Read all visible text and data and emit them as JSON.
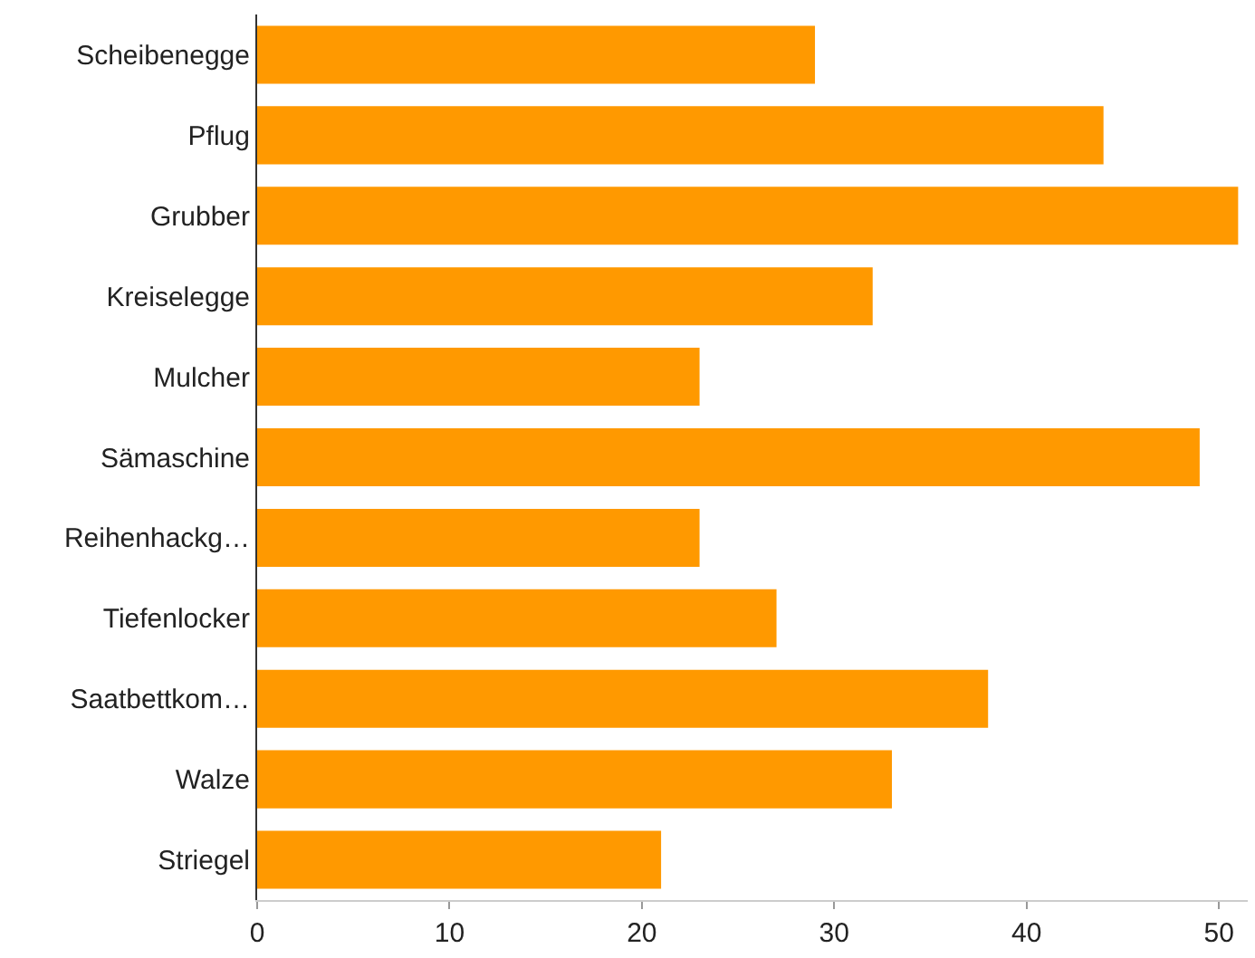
{
  "chart_data": {
    "type": "bar",
    "orientation": "horizontal",
    "categories": [
      "Scheibenegge",
      "Pflug",
      "Grubber",
      "Kreiselegge",
      "Mulcher",
      "Sämaschine",
      "Reihenhackg…",
      "Tiefenlocker",
      "Saatbettkom…",
      "Walze",
      "Striegel"
    ],
    "values": [
      29,
      44,
      51,
      32,
      23,
      49,
      23,
      27,
      38,
      33,
      21
    ],
    "color": "#ff9900",
    "xlim": [
      0,
      51.5
    ],
    "xticks": [
      0,
      10,
      20,
      30,
      40,
      50
    ],
    "legend": false
  }
}
